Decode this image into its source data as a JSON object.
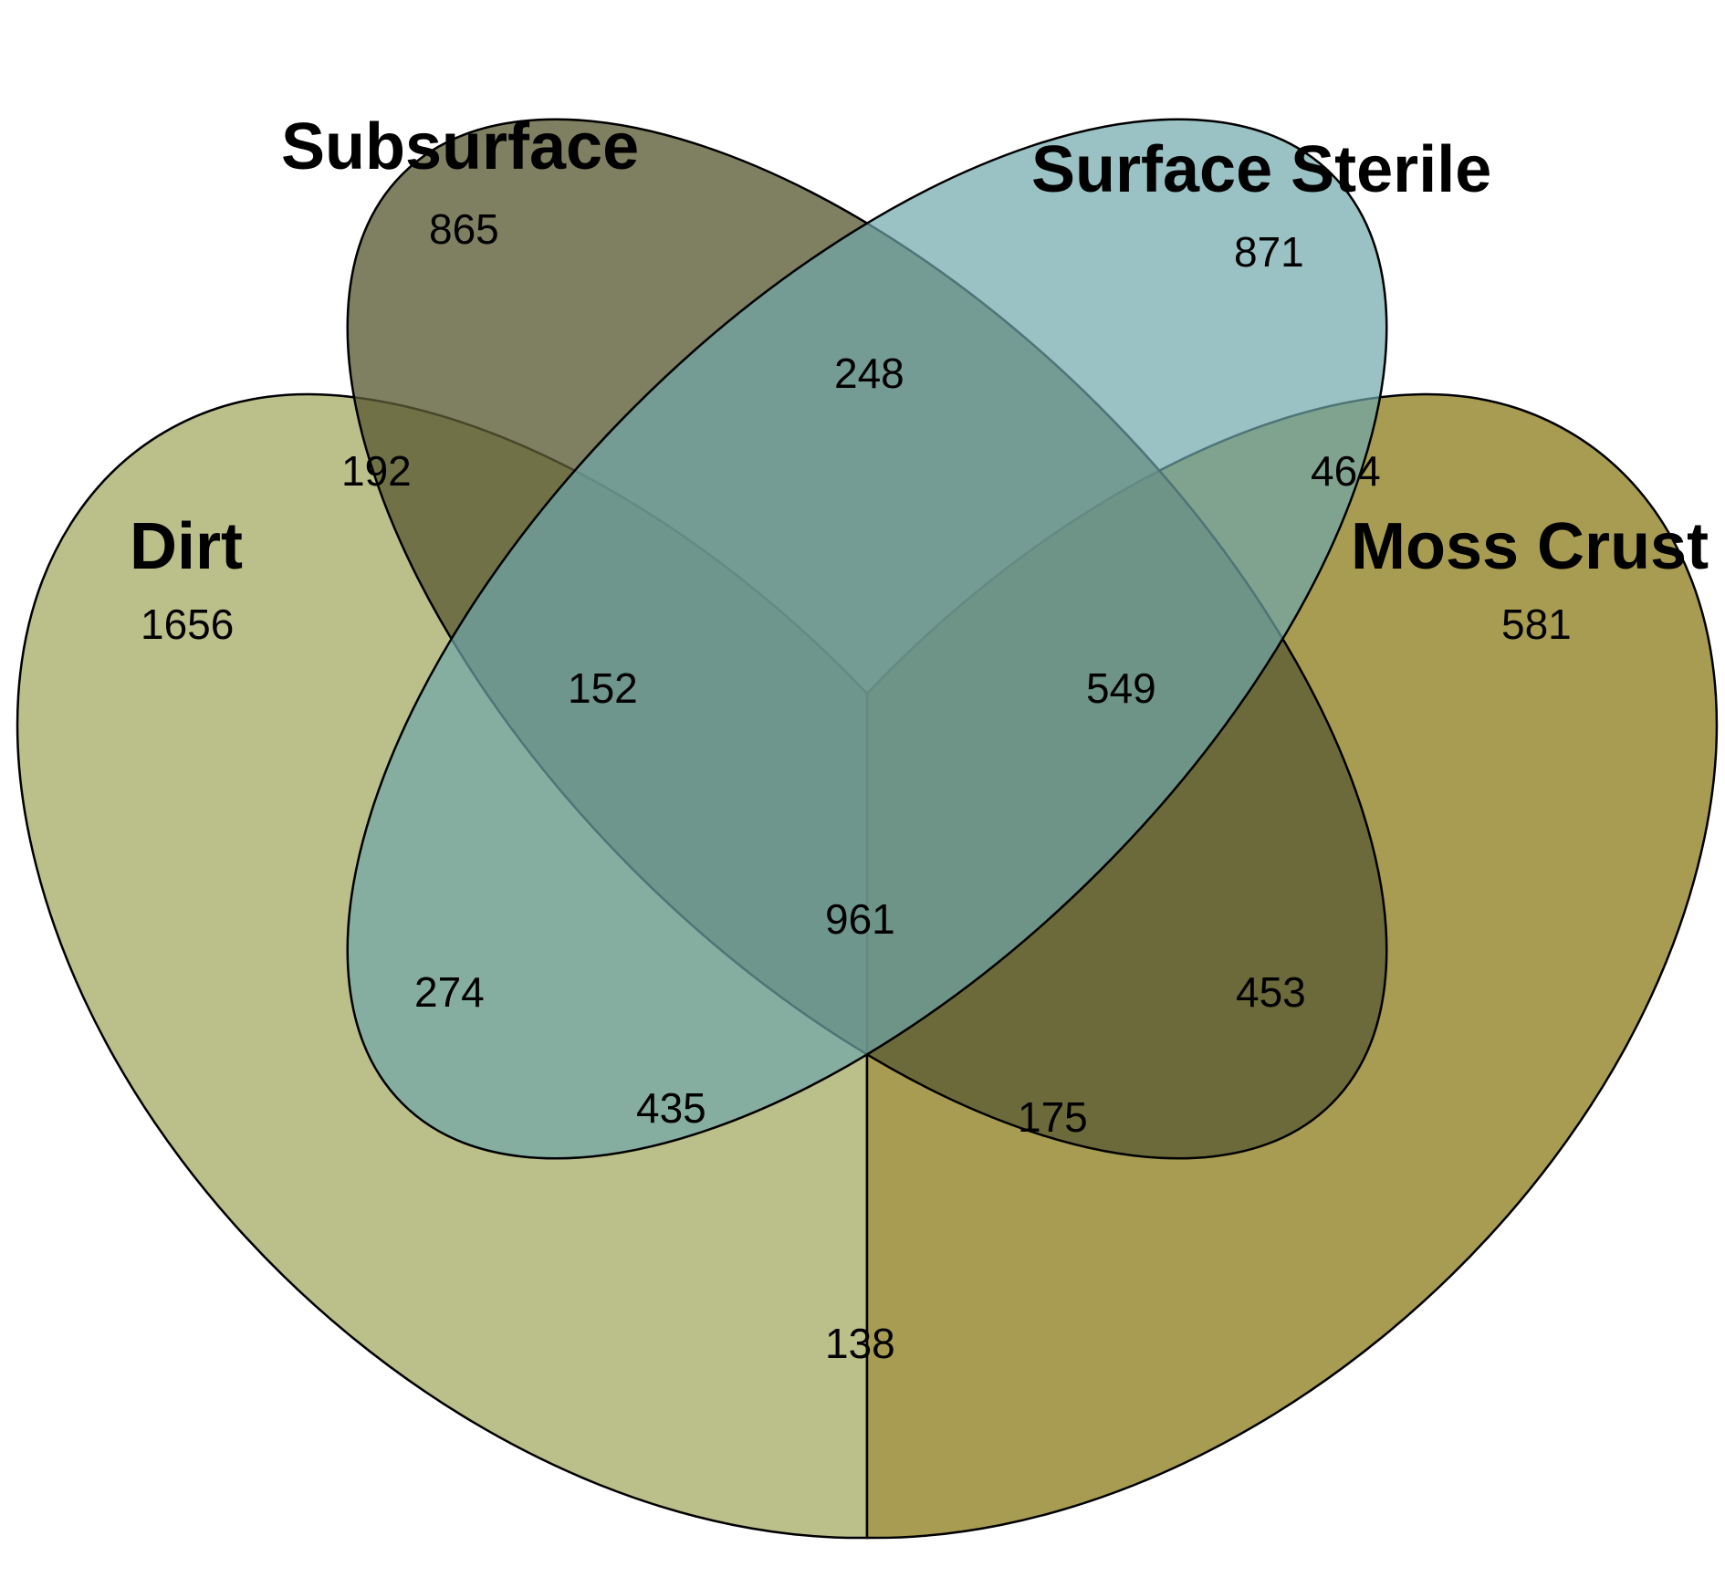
{
  "diagram": {
    "type": "venn",
    "sets": [
      {
        "key": "dirt",
        "label": "Dirt",
        "color": "#b4b87c"
      },
      {
        "key": "subsurface",
        "label": "Subsurface",
        "color": "#5b5b35"
      },
      {
        "key": "surface_sterile",
        "label": "Surface Sterile",
        "color": "#6fa7aa"
      },
      {
        "key": "moss_crust",
        "label": "Moss Crust",
        "color": "#9e913f"
      }
    ],
    "region_colors": {
      "dirt_subsurface": "#2f3240",
      "surface_sterile_moss_crust": "#d0bc86",
      "dirt_moss_crust": "#8e5516",
      "subsurface_surface_sterile": "#b99641",
      "dirt_subsurface_surface_sterile_or_core": "#8b9168",
      "bottom_lobe": "#387893"
    },
    "counts": {
      "dirt_only": "1656",
      "subsurface_only": "865",
      "surface_sterile_only": "871",
      "moss_crust_only": "581",
      "dirt_subsurface": "192",
      "subsurface_surface_sterile": "248",
      "surface_sterile_moss_crust": "464",
      "dirt_subsurface_surface_sterile": "152",
      "subsurface_surface_sterile_moss_crust": "549",
      "all_four": "961",
      "dirt_surface_sterile": "274",
      "subsurface_moss_crust": "453",
      "dirt_surface_sterile_moss_crust": "435",
      "dirt_subsurface_moss_crust": "175",
      "dirt_moss_crust": "138"
    }
  }
}
